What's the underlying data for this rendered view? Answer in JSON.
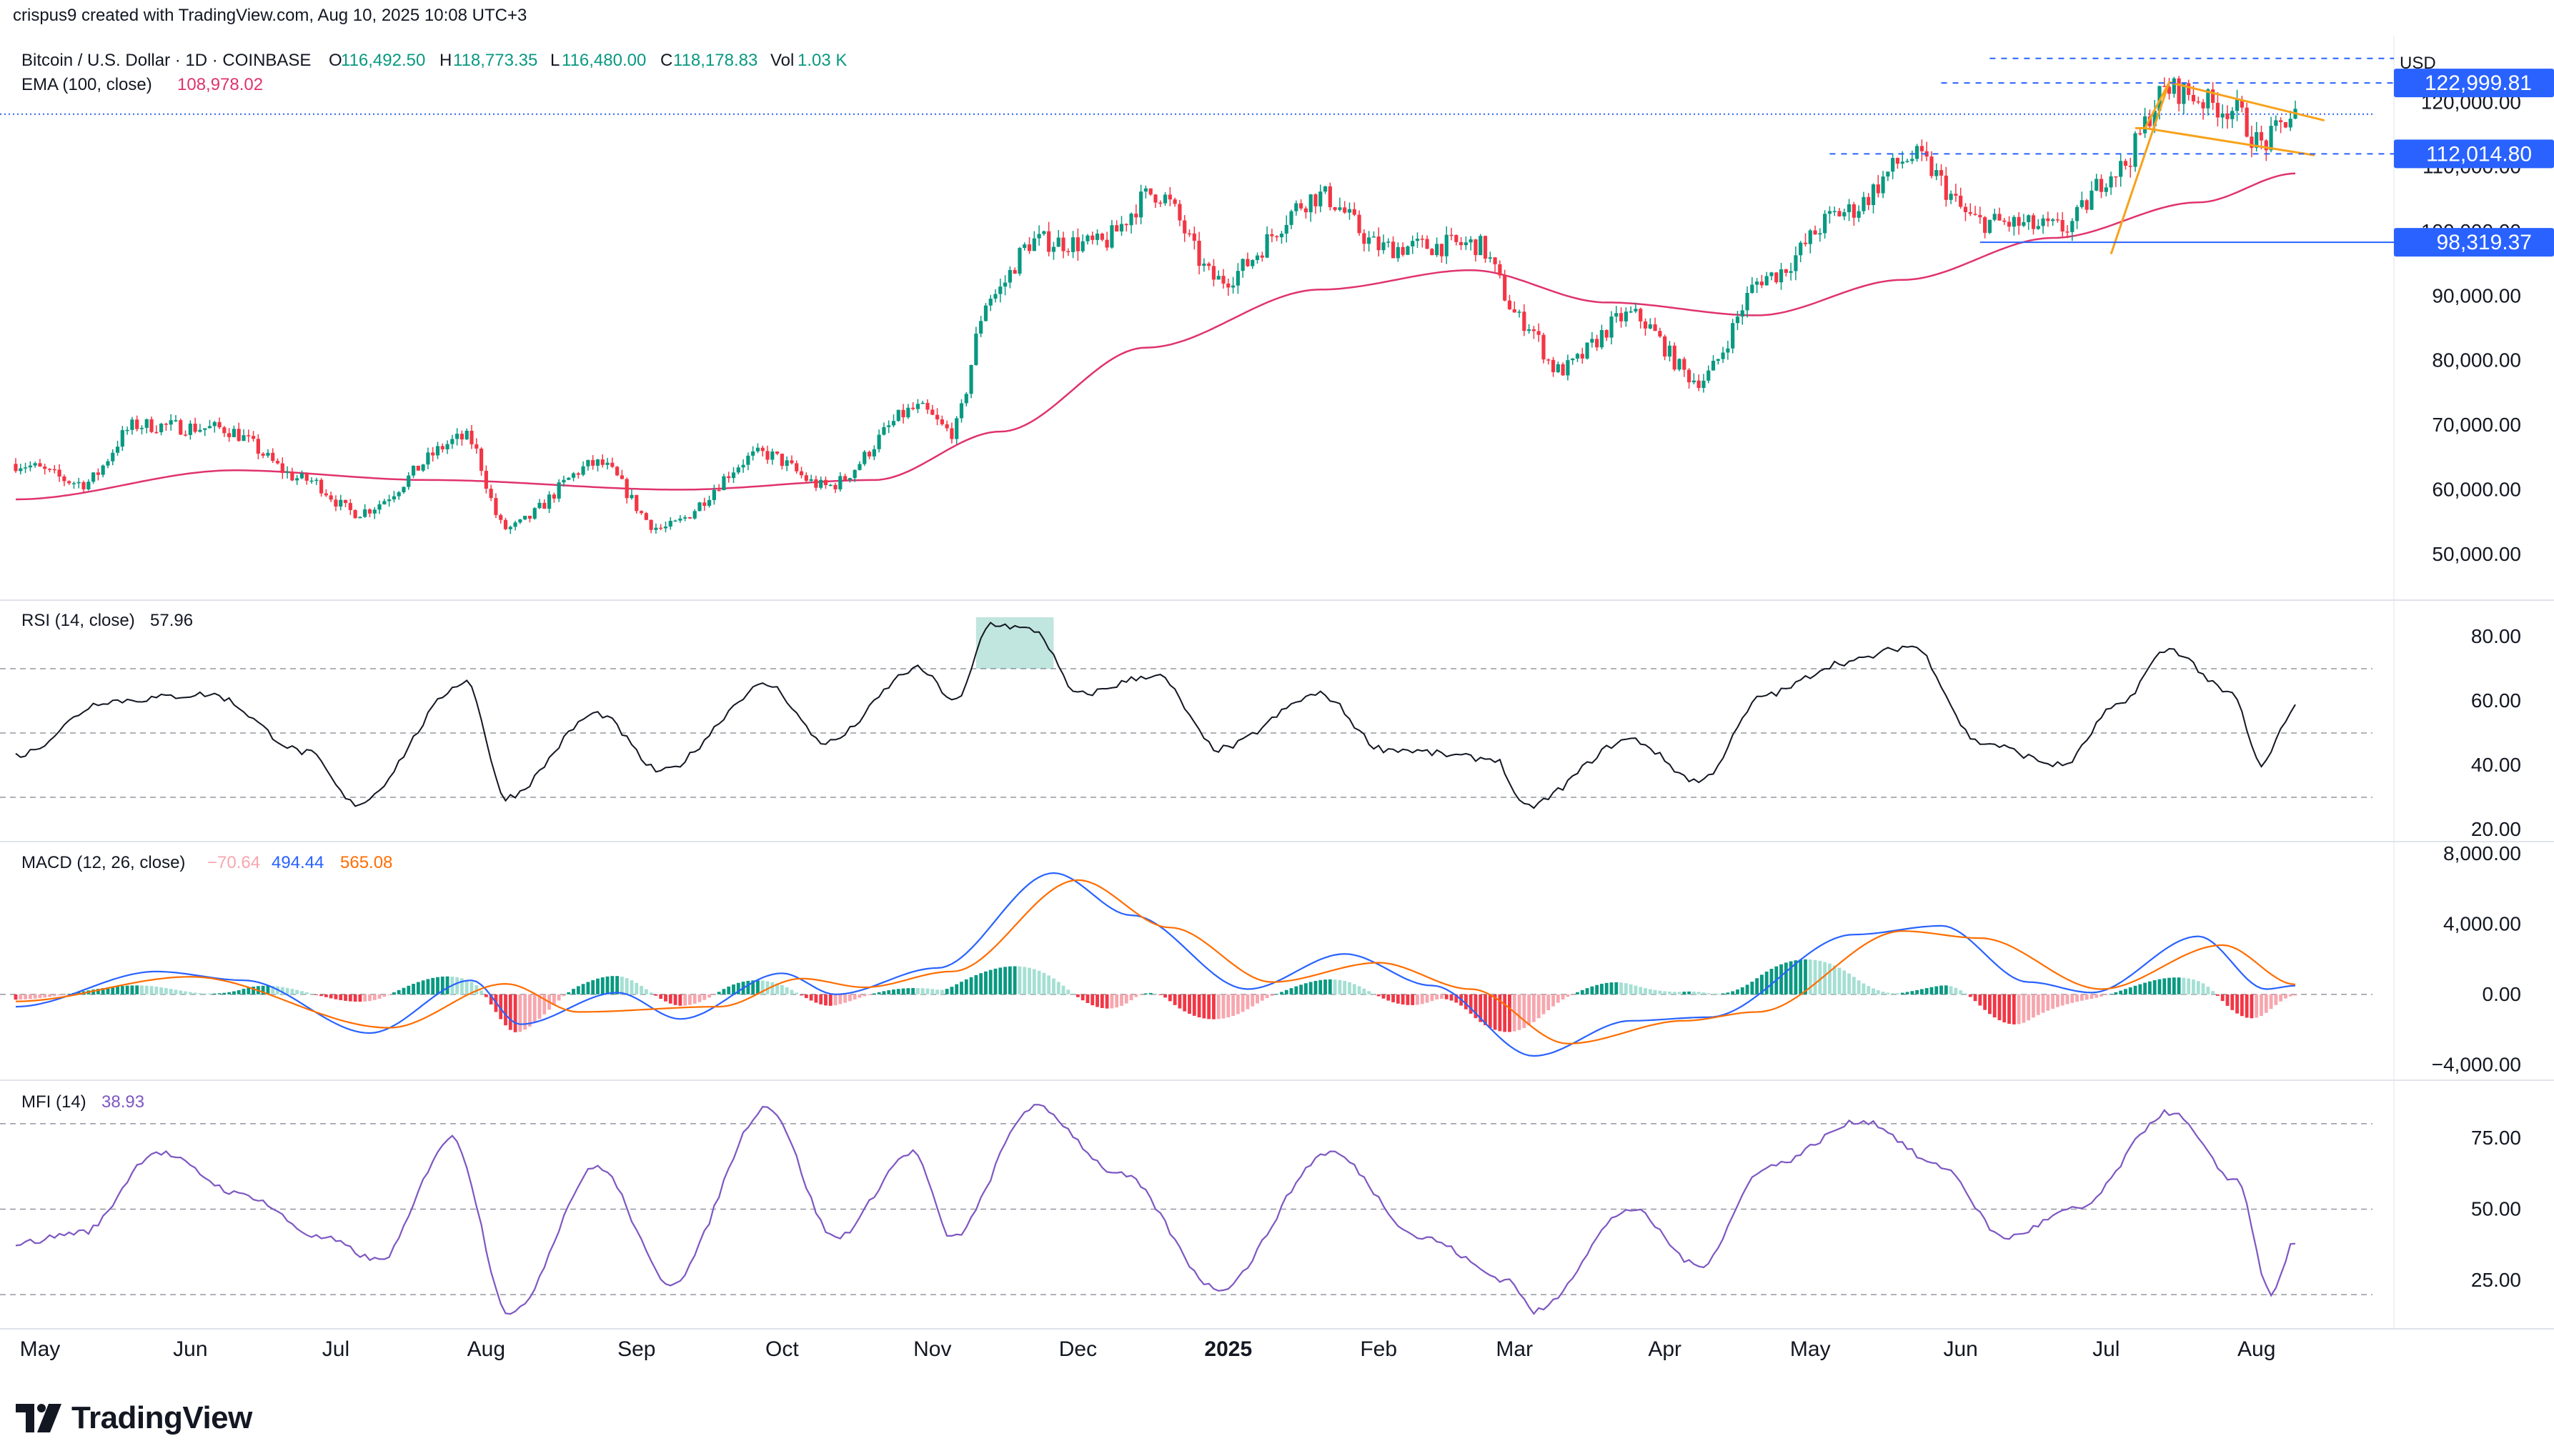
{
  "header": {
    "credit": "crispus9 created with TradingView.com, Aug 10, 2025 10:08 UTC+3",
    "symbol": "Bitcoin / U.S. Dollar · 1D · COINBASE",
    "open_label": "O",
    "open": "116,492.50",
    "high_label": "H",
    "high": "118,773.35",
    "low_label": "L",
    "low": "116,480.00",
    "close_label": "C",
    "close": "118,178.83",
    "vol_label": "Vol",
    "vol": "1.03 K",
    "ema_label": "EMA (100, close)",
    "ema_value": "108,978.02",
    "currency": "USD"
  },
  "price_levels": [
    {
      "label": "122,999.81",
      "value": 122999.81
    },
    {
      "label": "112,014.80",
      "value": 112014.8
    },
    {
      "label": "98,319.37",
      "value": 98319.37
    }
  ],
  "indicators": {
    "rsi": {
      "label": "RSI (14, close)",
      "value": "57.96"
    },
    "macd": {
      "label": "MACD (12, 26, close)",
      "hist": "−70.64",
      "macd": "494.44",
      "signal": "565.08"
    },
    "mfi": {
      "label": "MFI (14)",
      "value": "38.93"
    }
  },
  "colors": {
    "up": "#089981",
    "down": "#f23645",
    "ema": "#e0336e",
    "rsi": "#131722",
    "macd": "#2962ff",
    "signal": "#ff6d00",
    "mfi": "#7e57c2",
    "pattern": "#f7a21b",
    "level": "#2962ff"
  },
  "chart_data": {
    "type": "candlestick",
    "x_axis_labels": [
      "May",
      "Jun",
      "Jul",
      "Aug",
      "Sep",
      "Oct",
      "Nov",
      "Dec",
      "2025",
      "Feb",
      "Mar",
      "Apr",
      "May",
      "Jun",
      "Jul",
      "Aug"
    ],
    "price_ticks": [
      "120,000.00",
      "110,000.00",
      "100,000.00",
      "90,000.00",
      "80,000.00",
      "70,000.00",
      "60,000.00",
      "50,000.00"
    ],
    "price_range": [
      44000,
      127000
    ],
    "close_anchors": [
      {
        "date": "2024-04-26",
        "close": 64000
      },
      {
        "date": "2024-05-10",
        "close": 61000
      },
      {
        "date": "2024-05-21",
        "close": 70000
      },
      {
        "date": "2024-06-07",
        "close": 69500
      },
      {
        "date": "2024-06-25",
        "close": 61500
      },
      {
        "date": "2024-07-05",
        "close": 56500
      },
      {
        "date": "2024-07-28",
        "close": 68000
      },
      {
        "date": "2024-08-05",
        "close": 54000
      },
      {
        "date": "2024-08-24",
        "close": 64000
      },
      {
        "date": "2024-09-06",
        "close": 54000
      },
      {
        "date": "2024-09-27",
        "close": 65500
      },
      {
        "date": "2024-10-10",
        "close": 60500
      },
      {
        "date": "2024-10-29",
        "close": 72500
      },
      {
        "date": "2024-11-05",
        "close": 69000
      },
      {
        "date": "2024-11-13",
        "close": 90000
      },
      {
        "date": "2024-11-22",
        "close": 98500
      },
      {
        "date": "2024-12-05",
        "close": 98000
      },
      {
        "date": "2024-12-17",
        "close": 106000
      },
      {
        "date": "2024-12-30",
        "close": 92500
      },
      {
        "date": "2025-01-20",
        "close": 105500
      },
      {
        "date": "2025-02-02",
        "close": 97500
      },
      {
        "date": "2025-02-21",
        "close": 98000
      },
      {
        "date": "2025-03-03",
        "close": 86000
      },
      {
        "date": "2025-03-10",
        "close": 78500
      },
      {
        "date": "2025-03-25",
        "close": 87000
      },
      {
        "date": "2025-04-08",
        "close": 77000
      },
      {
        "date": "2025-04-22",
        "close": 93000
      },
      {
        "date": "2025-05-08",
        "close": 103000
      },
      {
        "date": "2025-05-22",
        "close": 111500
      },
      {
        "date": "2025-06-05",
        "close": 101500
      },
      {
        "date": "2025-06-22",
        "close": 100500
      },
      {
        "date": "2025-07-03",
        "close": 109500
      },
      {
        "date": "2025-07-14",
        "close": 122000
      },
      {
        "date": "2025-07-27",
        "close": 119000
      },
      {
        "date": "2025-08-02",
        "close": 113500
      },
      {
        "date": "2025-08-09",
        "close": 118178.83
      }
    ],
    "ema_anchors": [
      {
        "date": "2024-04-26",
        "value": 58500
      },
      {
        "date": "2024-06-10",
        "value": 63000
      },
      {
        "date": "2024-07-20",
        "value": 61500
      },
      {
        "date": "2024-09-10",
        "value": 60000
      },
      {
        "date": "2024-10-20",
        "value": 61500
      },
      {
        "date": "2024-11-15",
        "value": 69000
      },
      {
        "date": "2024-12-15",
        "value": 82000
      },
      {
        "date": "2025-01-20",
        "value": 91000
      },
      {
        "date": "2025-02-20",
        "value": 94000
      },
      {
        "date": "2025-03-20",
        "value": 89000
      },
      {
        "date": "2025-04-20",
        "value": 87000
      },
      {
        "date": "2025-05-20",
        "value": 92500
      },
      {
        "date": "2025-06-20",
        "value": 99000
      },
      {
        "date": "2025-07-20",
        "value": 104500
      },
      {
        "date": "2025-08-09",
        "value": 108978.02
      }
    ],
    "rsi": {
      "ticks": [
        "80.00",
        "60.00",
        "40.00",
        "20.00"
      ],
      "range": [
        18,
        88
      ],
      "bands": [
        70,
        50,
        30
      ],
      "anchors": [
        {
          "date": "2024-04-26",
          "value": 43
        },
        {
          "date": "2024-05-15",
          "value": 60
        },
        {
          "date": "2024-06-05",
          "value": 62
        },
        {
          "date": "2024-06-25",
          "value": 44
        },
        {
          "date": "2024-07-05",
          "value": 28
        },
        {
          "date": "2024-07-28",
          "value": 66
        },
        {
          "date": "2024-08-05",
          "value": 30
        },
        {
          "date": "2024-08-24",
          "value": 56
        },
        {
          "date": "2024-09-06",
          "value": 38
        },
        {
          "date": "2024-09-28",
          "value": 65
        },
        {
          "date": "2024-10-10",
          "value": 47
        },
        {
          "date": "2024-10-29",
          "value": 70
        },
        {
          "date": "2024-11-06",
          "value": 60
        },
        {
          "date": "2024-11-13",
          "value": 84
        },
        {
          "date": "2024-11-22",
          "value": 82
        },
        {
          "date": "2024-12-01",
          "value": 62
        },
        {
          "date": "2024-12-17",
          "value": 68
        },
        {
          "date": "2024-12-30",
          "value": 45
        },
        {
          "date": "2025-01-20",
          "value": 62
        },
        {
          "date": "2025-02-02",
          "value": 45
        },
        {
          "date": "2025-02-25",
          "value": 42
        },
        {
          "date": "2025-03-03",
          "value": 27
        },
        {
          "date": "2025-03-25",
          "value": 48
        },
        {
          "date": "2025-04-08",
          "value": 35
        },
        {
          "date": "2025-04-22",
          "value": 62
        },
        {
          "date": "2025-05-08",
          "value": 72
        },
        {
          "date": "2025-05-22",
          "value": 77
        },
        {
          "date": "2025-06-05",
          "value": 47
        },
        {
          "date": "2025-06-22",
          "value": 40
        },
        {
          "date": "2025-07-03",
          "value": 58
        },
        {
          "date": "2025-07-14",
          "value": 76
        },
        {
          "date": "2025-07-27",
          "value": 62
        },
        {
          "date": "2025-08-02",
          "value": 40
        },
        {
          "date": "2025-08-09",
          "value": 57.96
        }
      ]
    },
    "macd": {
      "ticks": [
        "8,000.00",
        "4,000.00",
        "0.00",
        "−4,000.00"
      ],
      "range": [
        -4800,
        8200
      ],
      "macd_anchors": [
        {
          "date": "2024-04-26",
          "value": -700
        },
        {
          "date": "2024-05-25",
          "value": 1300
        },
        {
          "date": "2024-06-12",
          "value": 800
        },
        {
          "date": "2024-07-08",
          "value": -2200
        },
        {
          "date": "2024-07-29",
          "value": 800
        },
        {
          "date": "2024-08-08",
          "value": -1700
        },
        {
          "date": "2024-08-28",
          "value": 100
        },
        {
          "date": "2024-09-10",
          "value": -1400
        },
        {
          "date": "2024-10-01",
          "value": 1200
        },
        {
          "date": "2024-10-12",
          "value": 0
        },
        {
          "date": "2024-11-02",
          "value": 1500
        },
        {
          "date": "2024-11-26",
          "value": 6900
        },
        {
          "date": "2024-12-12",
          "value": 4500
        },
        {
          "date": "2025-01-05",
          "value": 300
        },
        {
          "date": "2025-01-25",
          "value": 2300
        },
        {
          "date": "2025-02-12",
          "value": 500
        },
        {
          "date": "2025-03-05",
          "value": -3500
        },
        {
          "date": "2025-03-25",
          "value": -1500
        },
        {
          "date": "2025-04-10",
          "value": -1300
        },
        {
          "date": "2025-05-10",
          "value": 3400
        },
        {
          "date": "2025-05-28",
          "value": 3900
        },
        {
          "date": "2025-06-15",
          "value": 700
        },
        {
          "date": "2025-06-28",
          "value": 100
        },
        {
          "date": "2025-07-20",
          "value": 3300
        },
        {
          "date": "2025-08-03",
          "value": 300
        },
        {
          "date": "2025-08-09",
          "value": 494.44
        }
      ],
      "signal_anchors": [
        {
          "date": "2024-04-26",
          "value": -400
        },
        {
          "date": "2024-06-01",
          "value": 1000
        },
        {
          "date": "2024-07-12",
          "value": -1900
        },
        {
          "date": "2024-08-05",
          "value": 600
        },
        {
          "date": "2024-08-20",
          "value": -1000
        },
        {
          "date": "2024-09-18",
          "value": -700
        },
        {
          "date": "2024-10-05",
          "value": 900
        },
        {
          "date": "2024-10-18",
          "value": 400
        },
        {
          "date": "2024-11-05",
          "value": 1300
        },
        {
          "date": "2024-12-01",
          "value": 6500
        },
        {
          "date": "2024-12-20",
          "value": 3800
        },
        {
          "date": "2025-01-10",
          "value": 700
        },
        {
          "date": "2025-02-01",
          "value": 1800
        },
        {
          "date": "2025-02-20",
          "value": 300
        },
        {
          "date": "2025-03-12",
          "value": -2800
        },
        {
          "date": "2025-04-05",
          "value": -1500
        },
        {
          "date": "2025-04-20",
          "value": -1000
        },
        {
          "date": "2025-05-20",
          "value": 3600
        },
        {
          "date": "2025-06-05",
          "value": 3200
        },
        {
          "date": "2025-06-30",
          "value": 300
        },
        {
          "date": "2025-07-25",
          "value": 2800
        },
        {
          "date": "2025-08-09",
          "value": 565.08
        }
      ]
    },
    "mfi": {
      "ticks": [
        "75.00",
        "50.00",
        "25.00"
      ],
      "range": [
        8,
        92
      ],
      "bands": [
        80,
        50,
        20
      ],
      "anchors": [
        {
          "date": "2024-04-26",
          "value": 38
        },
        {
          "date": "2024-05-10",
          "value": 42
        },
        {
          "date": "2024-05-25",
          "value": 70
        },
        {
          "date": "2024-06-12",
          "value": 55
        },
        {
          "date": "2024-06-28",
          "value": 40
        },
        {
          "date": "2024-07-10",
          "value": 32
        },
        {
          "date": "2024-07-25",
          "value": 75
        },
        {
          "date": "2024-08-06",
          "value": 13
        },
        {
          "date": "2024-08-24",
          "value": 65
        },
        {
          "date": "2024-09-08",
          "value": 24
        },
        {
          "date": "2024-09-28",
          "value": 86
        },
        {
          "date": "2024-10-12",
          "value": 40
        },
        {
          "date": "2024-10-28",
          "value": 70
        },
        {
          "date": "2024-11-05",
          "value": 40
        },
        {
          "date": "2024-11-22",
          "value": 86
        },
        {
          "date": "2024-12-10",
          "value": 62
        },
        {
          "date": "2024-12-30",
          "value": 22
        },
        {
          "date": "2025-01-22",
          "value": 70
        },
        {
          "date": "2025-02-10",
          "value": 40
        },
        {
          "date": "2025-02-28",
          "value": 25
        },
        {
          "date": "2025-03-05",
          "value": 14
        },
        {
          "date": "2025-03-25",
          "value": 50
        },
        {
          "date": "2025-04-08",
          "value": 30
        },
        {
          "date": "2025-04-22",
          "value": 65
        },
        {
          "date": "2025-05-12",
          "value": 81
        },
        {
          "date": "2025-05-28",
          "value": 65
        },
        {
          "date": "2025-06-10",
          "value": 40
        },
        {
          "date": "2025-06-25",
          "value": 50
        },
        {
          "date": "2025-07-14",
          "value": 84
        },
        {
          "date": "2025-07-28",
          "value": 60
        },
        {
          "date": "2025-08-04",
          "value": 20
        },
        {
          "date": "2025-08-09",
          "value": 38.93
        }
      ]
    }
  }
}
